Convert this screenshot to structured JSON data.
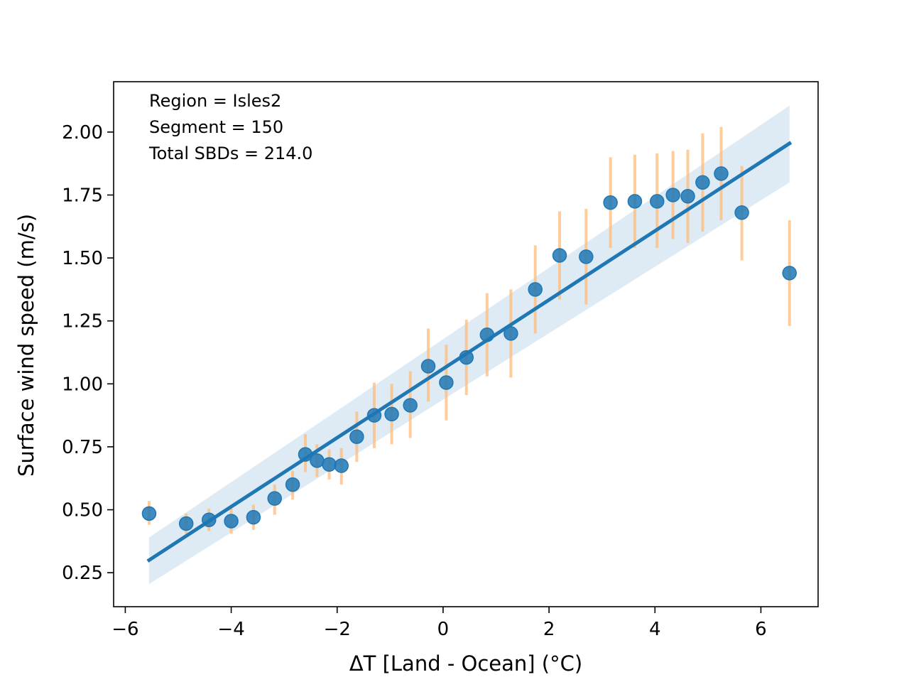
{
  "chart_data": {
    "type": "scatter",
    "xlabel": "ΔT [Land - Ocean] (°C)",
    "ylabel": "Surface wind speed (m/s)",
    "xlim": [
      -6.22,
      7.08
    ],
    "ylim": [
      0.115,
      2.2
    ],
    "xticks": [
      -6,
      -4,
      -2,
      0,
      2,
      4,
      6
    ],
    "xtick_labels": [
      "−6",
      "−4",
      "−2",
      "0",
      "2",
      "4",
      "6"
    ],
    "yticks": [
      0.25,
      0.5,
      0.75,
      1.0,
      1.25,
      1.5,
      1.75,
      2.0
    ],
    "ytick_labels": [
      "0.25",
      "0.50",
      "0.75",
      "1.00",
      "1.25",
      "1.50",
      "1.75",
      "2.00"
    ],
    "annotations": [
      "Region = Isles2",
      "Segment = 150",
      "Total SBDs = 214.0"
    ],
    "points": [
      {
        "x": -5.55,
        "y": 0.485,
        "lo": 0.44,
        "hi": 0.535
      },
      {
        "x": -4.85,
        "y": 0.445,
        "lo": 0.405,
        "hi": 0.485
      },
      {
        "x": -4.42,
        "y": 0.46,
        "lo": 0.415,
        "hi": 0.505
      },
      {
        "x": -4.0,
        "y": 0.455,
        "lo": 0.405,
        "hi": 0.505
      },
      {
        "x": -3.58,
        "y": 0.47,
        "lo": 0.42,
        "hi": 0.52
      },
      {
        "x": -3.18,
        "y": 0.545,
        "lo": 0.48,
        "hi": 0.6
      },
      {
        "x": -2.84,
        "y": 0.6,
        "lo": 0.54,
        "hi": 0.655
      },
      {
        "x": -2.6,
        "y": 0.72,
        "lo": 0.65,
        "hi": 0.8
      },
      {
        "x": -2.38,
        "y": 0.695,
        "lo": 0.63,
        "hi": 0.76
      },
      {
        "x": -2.15,
        "y": 0.68,
        "lo": 0.62,
        "hi": 0.74
      },
      {
        "x": -1.92,
        "y": 0.675,
        "lo": 0.6,
        "hi": 0.745
      },
      {
        "x": -1.63,
        "y": 0.79,
        "lo": 0.69,
        "hi": 0.89
      },
      {
        "x": -1.3,
        "y": 0.875,
        "lo": 0.745,
        "hi": 1.005
      },
      {
        "x": -0.97,
        "y": 0.88,
        "lo": 0.76,
        "hi": 1.0
      },
      {
        "x": -0.62,
        "y": 0.915,
        "lo": 0.785,
        "hi": 1.05
      },
      {
        "x": -0.28,
        "y": 1.07,
        "lo": 0.93,
        "hi": 1.22
      },
      {
        "x": 0.06,
        "y": 1.005,
        "lo": 0.855,
        "hi": 1.155
      },
      {
        "x": 0.44,
        "y": 1.105,
        "lo": 0.955,
        "hi": 1.255
      },
      {
        "x": 0.83,
        "y": 1.195,
        "lo": 1.03,
        "hi": 1.36
      },
      {
        "x": 1.28,
        "y": 1.2,
        "lo": 1.025,
        "hi": 1.375
      },
      {
        "x": 1.74,
        "y": 1.375,
        "lo": 1.2,
        "hi": 1.55
      },
      {
        "x": 2.2,
        "y": 1.51,
        "lo": 1.335,
        "hi": 1.685
      },
      {
        "x": 2.7,
        "y": 1.505,
        "lo": 1.315,
        "hi": 1.695
      },
      {
        "x": 3.16,
        "y": 1.72,
        "lo": 1.54,
        "hi": 1.9
      },
      {
        "x": 3.62,
        "y": 1.725,
        "lo": 1.54,
        "hi": 1.91
      },
      {
        "x": 4.04,
        "y": 1.725,
        "lo": 1.54,
        "hi": 1.915
      },
      {
        "x": 4.34,
        "y": 1.75,
        "lo": 1.575,
        "hi": 1.925
      },
      {
        "x": 4.62,
        "y": 1.745,
        "lo": 1.56,
        "hi": 1.93
      },
      {
        "x": 4.9,
        "y": 1.8,
        "lo": 1.605,
        "hi": 1.995
      },
      {
        "x": 5.25,
        "y": 1.835,
        "lo": 1.65,
        "hi": 2.02
      },
      {
        "x": 5.64,
        "y": 1.68,
        "lo": 1.49,
        "hi": 1.865
      },
      {
        "x": 6.54,
        "y": 1.44,
        "lo": 1.23,
        "hi": 1.65
      }
    ],
    "fit": {
      "x": [
        -5.55,
        6.54
      ],
      "y": [
        0.3,
        1.955
      ],
      "ci_lower": [
        0.205,
        1.8
      ],
      "ci_upper": [
        0.39,
        2.105
      ]
    },
    "colors": {
      "marker": "#1f77b4",
      "errorbar": "#ffbb78",
      "fit_line": "#1f77b4",
      "band": "#1f77b4"
    }
  }
}
